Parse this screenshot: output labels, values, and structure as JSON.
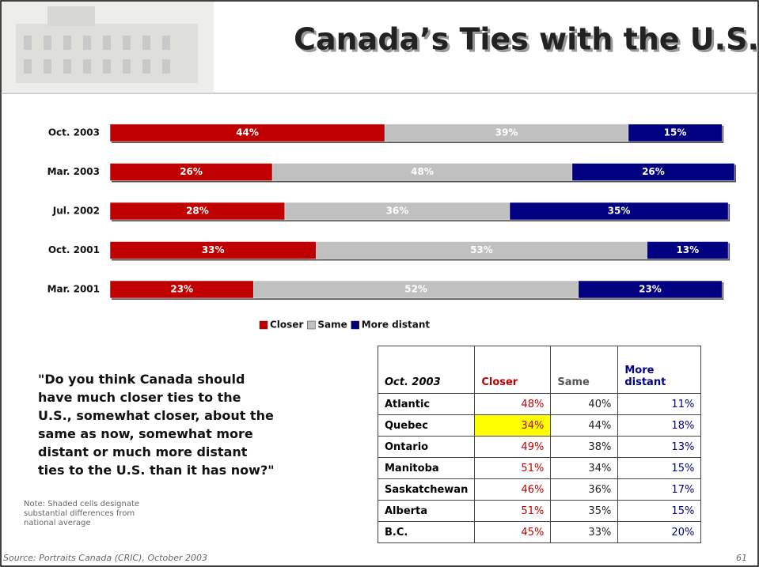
{
  "title": "Canada’s Ties with the U.S.",
  "chart_data": {
    "type": "bar",
    "orientation": "horizontal",
    "stacked": true,
    "categories": [
      "Oct. 2003",
      "Mar. 2003",
      "Jul. 2002",
      "Oct. 2001",
      "Mar. 2001"
    ],
    "series": [
      {
        "name": "Closer",
        "color": "#c00000",
        "values": [
          44,
          26,
          28,
          33,
          23
        ],
        "value_labels": [
          "44%",
          "26%",
          "28%",
          "33%",
          "23%"
        ]
      },
      {
        "name": "Same",
        "color": "#c0c0c0",
        "values": [
          39,
          48,
          36,
          53,
          52
        ],
        "value_labels": [
          "39%",
          "48%",
          "36%",
          "53%",
          "52%"
        ]
      },
      {
        "name": "More distant",
        "color": "#000080",
        "values": [
          15,
          26,
          35,
          13,
          23
        ],
        "value_labels": [
          "15%",
          "26%",
          "35%",
          "13%",
          "23%"
        ]
      }
    ],
    "legend": "bottom"
  },
  "question": "\"Do you think Canada should have much closer ties to the U.S., somewhat closer, about the same as now, somewhat more distant or much more distant ties to the U.S. than it has now?\"",
  "note": "Note: Shaded cells designate substantial differences from national average",
  "table": {
    "header": [
      "Oct. 2003",
      "Closer",
      "Same",
      "More distant"
    ],
    "rows": [
      [
        "Atlantic",
        "48%",
        "40%",
        "11%"
      ],
      [
        "Quebec",
        "34%",
        "44%",
        "18%"
      ],
      [
        "Ontario",
        "49%",
        "38%",
        "13%"
      ],
      [
        "Manitoba",
        "51%",
        "34%",
        "15%"
      ],
      [
        "Saskatchewan",
        "46%",
        "36%",
        "17%"
      ],
      [
        "Alberta",
        "51%",
        "35%",
        "15%"
      ],
      [
        "B.C.",
        "45%",
        "33%",
        "20%"
      ]
    ],
    "highlight": [
      [
        1,
        1
      ]
    ]
  },
  "footer": {
    "source": "Source: Portraits Canada (CRIC), October 2003",
    "page": "61"
  }
}
